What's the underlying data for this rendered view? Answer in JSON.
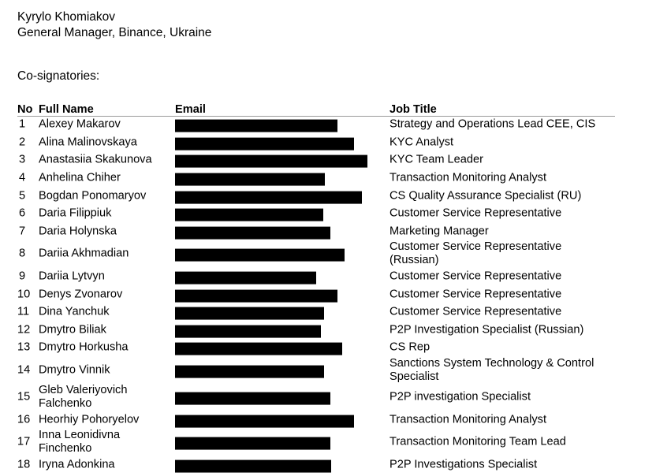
{
  "signatory": {
    "name": "Kyrylo Khomiakov",
    "title": "General Manager, Binance, Ukraine"
  },
  "cosignatories_label": "Co-signatories:",
  "table": {
    "headers": {
      "no": "No",
      "name": "Full Name",
      "email": "Email",
      "job": "Job Title"
    },
    "rows": [
      {
        "no": "1",
        "name": [
          "Alexey Makarov"
        ],
        "email": "[redacted]",
        "job": [
          "Strategy and Operations Lead CEE, CIS"
        ]
      },
      {
        "no": "2",
        "name": [
          "Alina Malinovskaya"
        ],
        "email": "[redacted]",
        "job": [
          "KYC Analyst"
        ]
      },
      {
        "no": "3",
        "name": [
          "Anastasiia Skakunova"
        ],
        "email": "[redacted]",
        "job": [
          "KYC Team Leader"
        ]
      },
      {
        "no": "4",
        "name": [
          "Anhelina Chiher"
        ],
        "email": "[redacted]",
        "job": [
          "Transaction Monitoring Analyst"
        ]
      },
      {
        "no": "5",
        "name": [
          "Bogdan Ponomaryov"
        ],
        "email": "[redacted]",
        "job": [
          "CS Quality Assurance Specialist (RU)"
        ]
      },
      {
        "no": "6",
        "name": [
          "Daria Filippiuk"
        ],
        "email": "[redacted]",
        "job": [
          "Customer Service Representative"
        ]
      },
      {
        "no": "7",
        "name": [
          "Daria Holynska"
        ],
        "email": "[redacted]",
        "job": [
          "Marketing Manager"
        ]
      },
      {
        "no": "8",
        "name": [
          "Dariia Akhmadian"
        ],
        "email": "[redacted]",
        "job": [
          "Customer Service Representative",
          "(Russian)"
        ]
      },
      {
        "no": "9",
        "name": [
          "Dariia Lytvyn"
        ],
        "email": "[redacted]",
        "job": [
          "Customer Service Representative"
        ]
      },
      {
        "no": "10",
        "name": [
          "Denys Zvonarov"
        ],
        "email": "[redacted]",
        "job": [
          "Customer Service Representative"
        ]
      },
      {
        "no": "11",
        "name": [
          "Dina Yanchuk"
        ],
        "email": "[redacted]",
        "job": [
          "Customer Service Representative"
        ]
      },
      {
        "no": "12",
        "name": [
          "Dmytro Biliak"
        ],
        "email": "[redacted]",
        "job": [
          "P2P Investigation Specialist (Russian)"
        ]
      },
      {
        "no": "13",
        "name": [
          "Dmytro Horkusha"
        ],
        "email": "[redacted]",
        "job": [
          "CS Rep"
        ]
      },
      {
        "no": "14",
        "name": [
          "Dmytro Vinnik"
        ],
        "email": "[redacted]",
        "job": [
          "Sanctions System Technology & Control",
          "Specialist"
        ]
      },
      {
        "no": "15",
        "name": [
          "Gleb Valeriyovich",
          "Falchenko"
        ],
        "email": "[redacted]",
        "job": [
          "P2P investigation Specialist"
        ]
      },
      {
        "no": "16",
        "name": [
          "Heorhiy Pohoryelov"
        ],
        "email": "[redacted]",
        "job": [
          "Transaction Monitoring Analyst"
        ]
      },
      {
        "no": "17",
        "name": [
          "Inna Leonidivna",
          "Finchenko"
        ],
        "email": "[redacted]",
        "job": [
          "Transaction Monitoring Team Lead"
        ]
      },
      {
        "no": "18",
        "name": [
          "Iryna Adonkina"
        ],
        "email": "[redacted]",
        "job": [
          "P2P Investigations Specialist"
        ]
      }
    ]
  }
}
